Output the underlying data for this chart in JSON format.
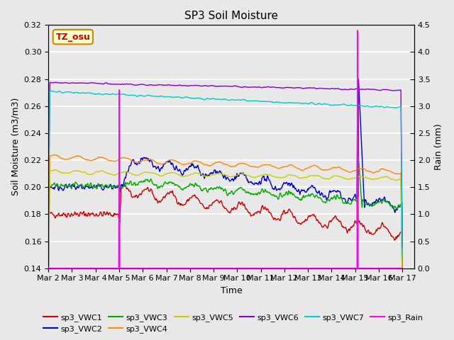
{
  "title": "SP3 Soil Moisture",
  "ylabel_left": "Soil Moisture (m3/m3)",
  "ylabel_right": "Rain (mm)",
  "xlabel": "Time",
  "timezone_label": "TZ_osu",
  "xlim_days": [
    0,
    15.5
  ],
  "ylim_left": [
    0.14,
    0.32
  ],
  "ylim_right": [
    0.0,
    4.5
  ],
  "yticks_left": [
    0.14,
    0.16,
    0.18,
    0.2,
    0.22,
    0.24,
    0.26,
    0.28,
    0.3,
    0.32
  ],
  "yticks_right": [
    0.0,
    0.5,
    1.0,
    1.5,
    2.0,
    2.5,
    3.0,
    3.5,
    4.0,
    4.5
  ],
  "xtick_labels": [
    "Mar 2",
    "Mar 3",
    "Mar 4",
    "Mar 5",
    "Mar 6",
    "Mar 7",
    "Mar 8",
    "Mar 9",
    "Mar 10",
    "Mar 11",
    "Mar 12",
    "Mar 13",
    "Mar 14",
    "Mar 15",
    "Mar 16",
    "Mar 17"
  ],
  "xtick_positions": [
    0,
    1,
    2,
    3,
    4,
    5,
    6,
    7,
    8,
    9,
    10,
    11,
    12,
    13,
    14,
    15
  ],
  "background_color": "#e8e8e8",
  "series": {
    "sp3_VWC1": {
      "color": "#cc0000",
      "lw": 1.0
    },
    "sp3_VWC2": {
      "color": "#0000cc",
      "lw": 1.0
    },
    "sp3_VWC3": {
      "color": "#00aa00",
      "lw": 1.0
    },
    "sp3_VWC4": {
      "color": "#ff8800",
      "lw": 1.0
    },
    "sp3_VWC5": {
      "color": "#cccc00",
      "lw": 1.0
    },
    "sp3_VWC6": {
      "color": "#8800cc",
      "lw": 1.0
    },
    "sp3_VWC7": {
      "color": "#00cccc",
      "lw": 1.0
    },
    "sp3_Rain": {
      "color": "#ff00ff",
      "lw": 1.2
    }
  },
  "legend_row1": [
    "sp3_VWC1",
    "sp3_VWC2",
    "sp3_VWC3",
    "sp3_VWC4",
    "sp3_VWC5",
    "sp3_VWC6"
  ],
  "legend_row2": [
    "sp3_VWC7",
    "sp3_Rain"
  ]
}
